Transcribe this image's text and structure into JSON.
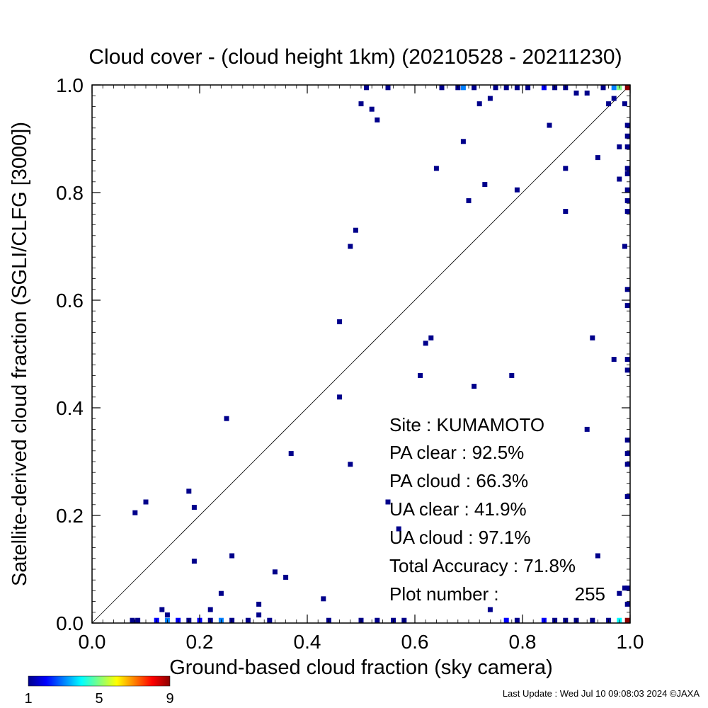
{
  "chart_data": {
    "type": "heatmap",
    "title": "Cloud cover - (cloud height 1km)  (20210528 - 20211230)",
    "xlabel": "Ground-based cloud fraction (sky camera)",
    "ylabel": "Satellite-derived cloud fraction (SGLI/CLFG [3000])",
    "xlim": [
      0,
      1
    ],
    "ylim": [
      0,
      1
    ],
    "xticks": [
      "0.0",
      "0.2",
      "0.4",
      "0.6",
      "0.8",
      "1.0"
    ],
    "yticks": [
      "0.0",
      "0.2",
      "0.4",
      "0.6",
      "0.8",
      "1.0"
    ],
    "diagonal": true,
    "colorbar": {
      "min": 1,
      "max": 9,
      "tick_labels": [
        "1",
        "5",
        "9"
      ],
      "colors": [
        "#00008b",
        "#0000ff",
        "#0080ff",
        "#00ffff",
        "#80ff80",
        "#ffff00",
        "#ff8000",
        "#ff0000",
        "#8b0000"
      ]
    },
    "points": [
      [
        0.08,
        0.205,
        1
      ],
      [
        0.1,
        0.225,
        1
      ],
      [
        0.18,
        0.245,
        1
      ],
      [
        0.19,
        0.215,
        1
      ],
      [
        0.19,
        0.115,
        1
      ],
      [
        0.25,
        0.38,
        1
      ],
      [
        0.26,
        0.125,
        1
      ],
      [
        0.24,
        0.055,
        1
      ],
      [
        0.22,
        0.025,
        1
      ],
      [
        0.13,
        0.025,
        1
      ],
      [
        0.14,
        0.015,
        1
      ],
      [
        0.31,
        0.035,
        1
      ],
      [
        0.31,
        0.015,
        1
      ],
      [
        0.34,
        0.095,
        1
      ],
      [
        0.36,
        0.085,
        1
      ],
      [
        0.37,
        0.315,
        1
      ],
      [
        0.43,
        0.045,
        1
      ],
      [
        0.46,
        0.56,
        1
      ],
      [
        0.46,
        0.42,
        1
      ],
      [
        0.48,
        0.7,
        1
      ],
      [
        0.49,
        0.73,
        1
      ],
      [
        0.48,
        0.295,
        1
      ],
      [
        0.5,
        0.965,
        1
      ],
      [
        0.51,
        0.995,
        1
      ],
      [
        0.52,
        0.955,
        1
      ],
      [
        0.53,
        0.935,
        1
      ],
      [
        0.55,
        0.995,
        1
      ],
      [
        0.55,
        0.225,
        1
      ],
      [
        0.57,
        0.175,
        1
      ],
      [
        0.61,
        0.46,
        1
      ],
      [
        0.62,
        0.52,
        1
      ],
      [
        0.63,
        0.53,
        1
      ],
      [
        0.64,
        0.845,
        1
      ],
      [
        0.69,
        0.895,
        1
      ],
      [
        0.7,
        0.785,
        1
      ],
      [
        0.71,
        0.44,
        1
      ],
      [
        0.72,
        0.965,
        1
      ],
      [
        0.73,
        0.815,
        1
      ],
      [
        0.74,
        0.975,
        1
      ],
      [
        0.74,
        0.025,
        1
      ],
      [
        0.78,
        0.46,
        1
      ],
      [
        0.79,
        0.805,
        1
      ],
      [
        0.85,
        0.925,
        1
      ],
      [
        0.88,
        0.845,
        1
      ],
      [
        0.88,
        0.765,
        1
      ],
      [
        0.92,
        0.36,
        1
      ],
      [
        0.93,
        0.53,
        1
      ],
      [
        0.94,
        0.865,
        1
      ],
      [
        0.96,
        0.965,
        1
      ],
      [
        0.97,
        0.975,
        1
      ],
      [
        0.97,
        0.49,
        1
      ],
      [
        0.98,
        0.885,
        1
      ],
      [
        0.98,
        0.825,
        1
      ],
      [
        0.99,
        0.7,
        1
      ],
      [
        0.99,
        0.965,
        1
      ],
      [
        0.94,
        0.125,
        1
      ],
      [
        0.98,
        0.055,
        1
      ],
      [
        0.99,
        0.065,
        1
      ],
      [
        0.9,
        0.985,
        1
      ],
      [
        0.92,
        0.985,
        1
      ],
      [
        0.65,
        0.995,
        1
      ],
      [
        0.68,
        0.995,
        1
      ],
      [
        0.71,
        0.995,
        1
      ],
      [
        0.75,
        0.995,
        1
      ],
      [
        0.77,
        0.995,
        1
      ],
      [
        0.79,
        0.995,
        1
      ],
      [
        0.81,
        0.995,
        1
      ],
      [
        0.84,
        0.995,
        2
      ],
      [
        0.86,
        0.995,
        1
      ],
      [
        0.88,
        0.995,
        1
      ],
      [
        0.69,
        0.995,
        3
      ],
      [
        0.95,
        0.995,
        1
      ],
      [
        0.97,
        0.995,
        3
      ],
      [
        0.98,
        0.995,
        5
      ],
      [
        0.995,
        0.995,
        9
      ],
      [
        0.995,
        0.925,
        1
      ],
      [
        0.995,
        0.905,
        1
      ],
      [
        0.995,
        0.885,
        1
      ],
      [
        0.995,
        0.845,
        1
      ],
      [
        0.995,
        0.835,
        1
      ],
      [
        0.995,
        0.805,
        1
      ],
      [
        0.995,
        0.785,
        1
      ],
      [
        0.995,
        0.765,
        1
      ],
      [
        0.995,
        0.62,
        1
      ],
      [
        0.995,
        0.59,
        1
      ],
      [
        0.995,
        0.49,
        1
      ],
      [
        0.995,
        0.47,
        1
      ],
      [
        0.995,
        0.34,
        1
      ],
      [
        0.995,
        0.315,
        1
      ],
      [
        0.995,
        0.295,
        1
      ],
      [
        0.995,
        0.235,
        1
      ],
      [
        0.995,
        0.065,
        1
      ],
      [
        0.995,
        0.035,
        1
      ],
      [
        0.075,
        0.005,
        1
      ],
      [
        0.085,
        0.005,
        1
      ],
      [
        0.12,
        0.005,
        2
      ],
      [
        0.14,
        0.005,
        3
      ],
      [
        0.16,
        0.005,
        2
      ],
      [
        0.18,
        0.005,
        1
      ],
      [
        0.2,
        0.005,
        2
      ],
      [
        0.22,
        0.005,
        1
      ],
      [
        0.24,
        0.005,
        3
      ],
      [
        0.26,
        0.005,
        1
      ],
      [
        0.29,
        0.005,
        1
      ],
      [
        0.33,
        0.005,
        1
      ],
      [
        0.44,
        0.005,
        1
      ],
      [
        0.5,
        0.005,
        1
      ],
      [
        0.53,
        0.005,
        1
      ],
      [
        0.56,
        0.005,
        1
      ],
      [
        0.58,
        0.005,
        1
      ],
      [
        0.77,
        0.005,
        2
      ],
      [
        0.79,
        0.005,
        1
      ],
      [
        0.84,
        0.005,
        2
      ],
      [
        0.86,
        0.005,
        1
      ],
      [
        0.88,
        0.005,
        1
      ],
      [
        0.9,
        0.005,
        1
      ],
      [
        0.93,
        0.005,
        1
      ],
      [
        0.96,
        0.005,
        1
      ],
      [
        0.98,
        0.005,
        4
      ],
      [
        0.995,
        0.005,
        9
      ]
    ],
    "stats": {
      "site": "Site : KUMAMOTO",
      "pa_clear": "PA clear :  92.5%",
      "pa_cloud": "PA cloud :  66.3%",
      "ua_clear": "UA clear :  41.9%",
      "ua_cloud": "UA cloud :  97.1%",
      "total_accuracy": "Total Accuracy :  71.8%",
      "plot_number_label": "Plot number :",
      "plot_number_value": "255"
    }
  },
  "footer": "Last Update : Wed Jul 10 09:08:03 2024  ©JAXA"
}
